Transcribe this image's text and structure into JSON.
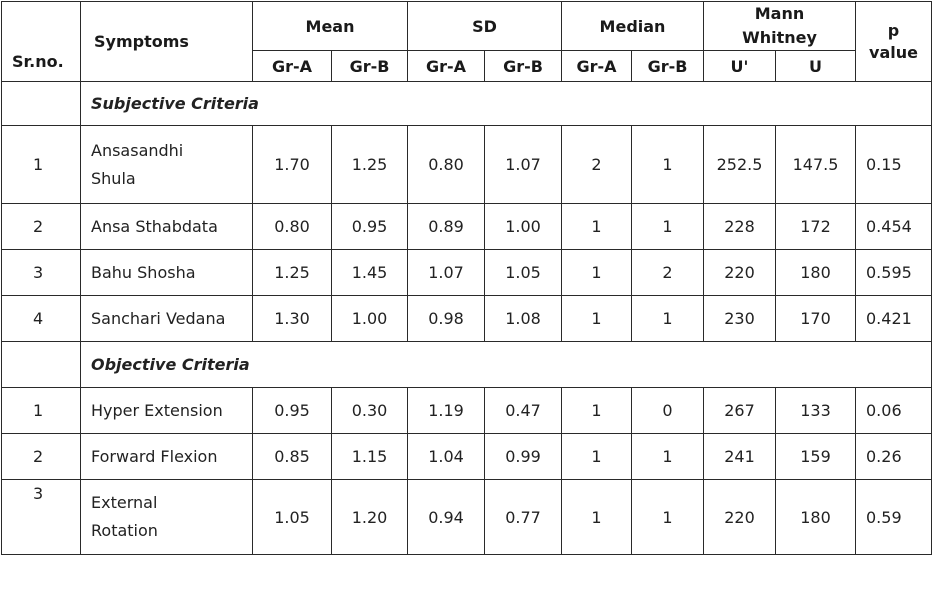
{
  "header": {
    "srno": "Sr.no.",
    "symptoms": "Symptoms",
    "mean": "Mean",
    "sd": "SD",
    "median": "Median",
    "mann_whitney_1": "Mann",
    "mann_whitney_2": "Whitney",
    "p_value_1": "p",
    "p_value_2": "value",
    "gr_a": "Gr-A",
    "gr_b": "Gr-B",
    "u_prime": "U'",
    "u": "U"
  },
  "sections": [
    {
      "title": "Subjective Criteria",
      "rows": [
        {
          "sr": "1",
          "symptom_1": "Ansasandhi",
          "symptom_2": "Shula",
          "mean_a": "1.70",
          "mean_b": "1.25",
          "sd_a": "0.80",
          "sd_b": "1.07",
          "median_a": "2",
          "median_b": "1",
          "u_prime": "252.5",
          "u": "147.5",
          "p": "0.15"
        },
        {
          "sr": "2",
          "symptom": "Ansa Sthabdata",
          "mean_a": "0.80",
          "mean_b": "0.95",
          "sd_a": "0.89",
          "sd_b": "1.00",
          "median_a": "1",
          "median_b": "1",
          "u_prime": "228",
          "u": "172",
          "p": "0.454"
        },
        {
          "sr": "3",
          "symptom": "Bahu Shosha",
          "mean_a": "1.25",
          "mean_b": "1.45",
          "sd_a": "1.07",
          "sd_b": "1.05",
          "median_a": "1",
          "median_b": "2",
          "u_prime": "220",
          "u": "180",
          "p": "0.595"
        },
        {
          "sr": "4",
          "symptom": "Sanchari Vedana",
          "mean_a": "1.30",
          "mean_b": "1.00",
          "sd_a": "0.98",
          "sd_b": "1.08",
          "median_a": "1",
          "median_b": "1",
          "u_prime": "230",
          "u": "170",
          "p": "0.421"
        }
      ]
    },
    {
      "title": "Objective Criteria",
      "rows": [
        {
          "sr": "1",
          "symptom": "Hyper Extension",
          "mean_a": "0.95",
          "mean_b": "0.30",
          "sd_a": "1.19",
          "sd_b": "0.47",
          "median_a": "1",
          "median_b": "0",
          "u_prime": "267",
          "u": "133",
          "p": "0.06"
        },
        {
          "sr": "2",
          "symptom": "Forward Flexion",
          "mean_a": "0.85",
          "mean_b": "1.15",
          "sd_a": "1.04",
          "sd_b": "0.99",
          "median_a": "1",
          "median_b": "1",
          "u_prime": "241",
          "u": "159",
          "p": "0.26"
        },
        {
          "sr": "3",
          "symptom_1": "External",
          "symptom_2": "Rotation",
          "mean_a": "1.05",
          "mean_b": "1.20",
          "sd_a": "0.94",
          "sd_b": "0.77",
          "median_a": "1",
          "median_b": "1",
          "u_prime": "220",
          "u": "180",
          "p": "0.59"
        }
      ]
    }
  ]
}
